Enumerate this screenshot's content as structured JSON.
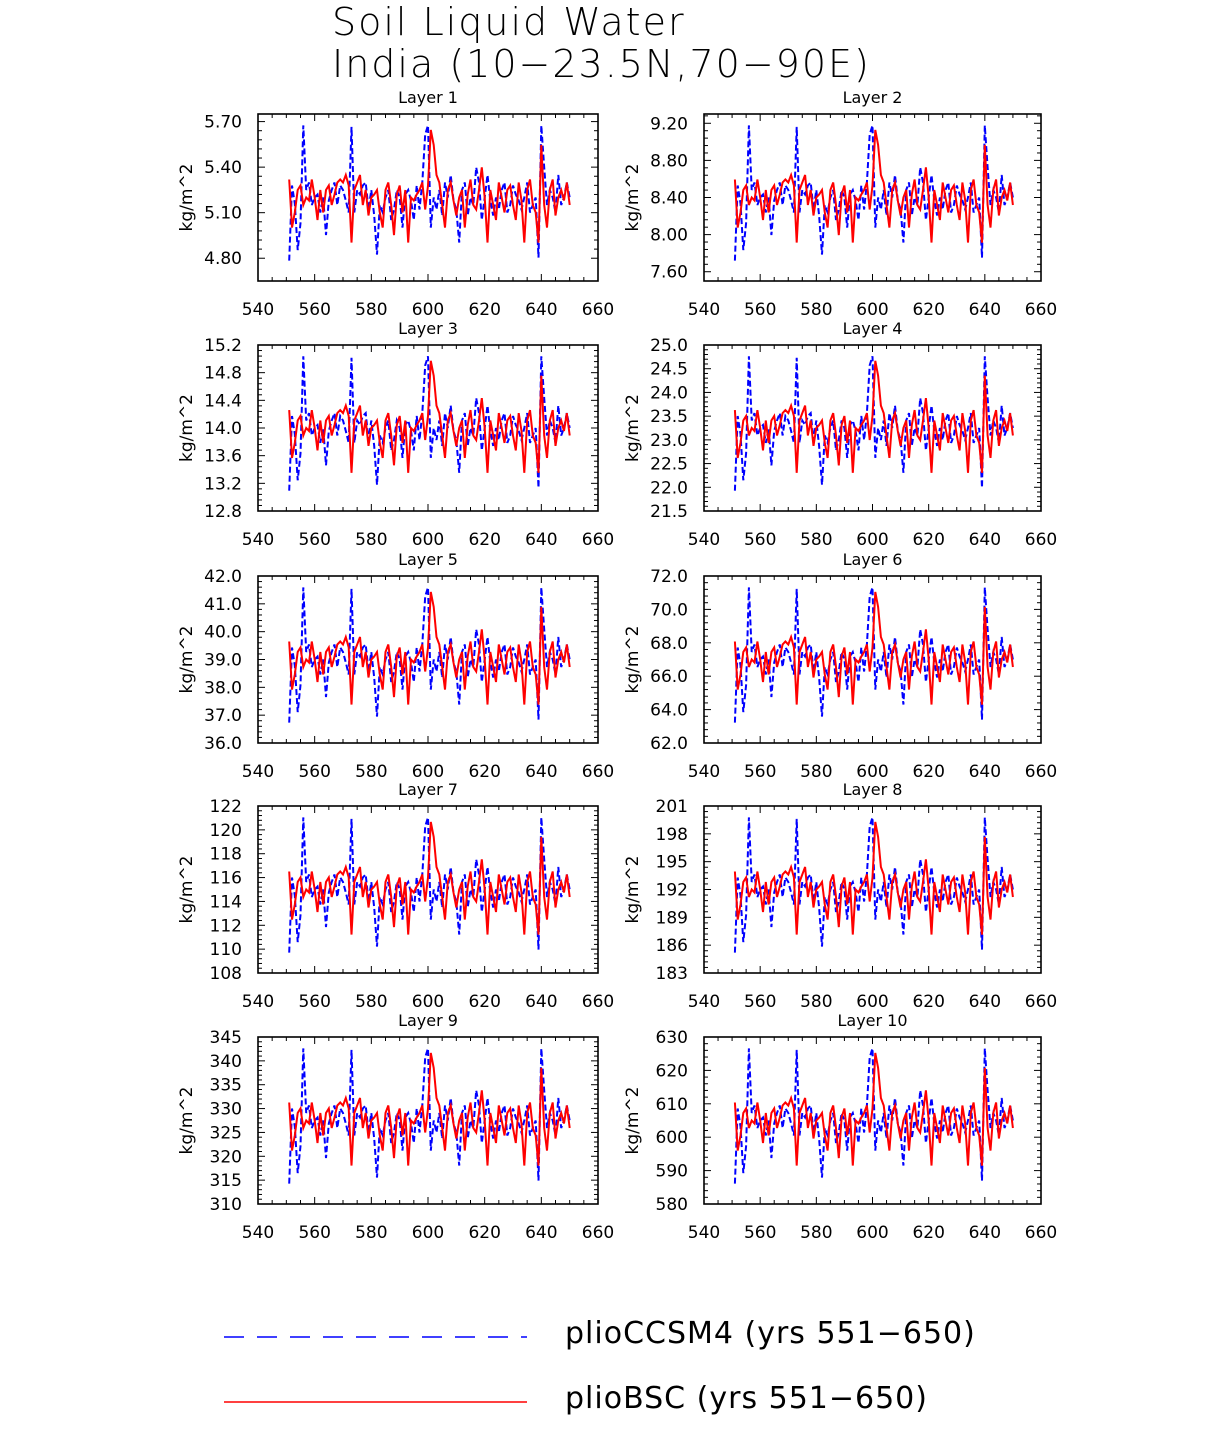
{
  "title_lines": [
    "Soil Liquid Water",
    "India (10−23.5N,70−90E)"
  ],
  "legend": [
    {
      "label": "plioCCSM4 (yrs 551−650)",
      "color": "#0000ff",
      "style": "dashed"
    },
    {
      "label": "plioBSC (yrs 551−650)",
      "color": "#ff0000",
      "style": "solid"
    }
  ],
  "chart_data": [
    {
      "type": "line",
      "title": "Layer 1",
      "ylabel": "kg/m^2",
      "xlim": [
        540,
        660
      ],
      "xticks": [
        540,
        560,
        580,
        600,
        620,
        640,
        660
      ],
      "ylim": [
        4.65,
        5.75
      ],
      "yticks": [
        4.8,
        5.1,
        5.4,
        5.7
      ],
      "ytick_labels": [
        "4.80",
        "5.10",
        "5.40",
        "5.70"
      ],
      "x_start": 551,
      "x_end": 650,
      "series": [
        {
          "name": "plioCCSM4 (yrs 551−650)",
          "color": "#0000ff",
          "dash": true
        },
        {
          "name": "plioBSC (yrs 551−650)",
          "color": "#ff0000",
          "dash": false
        }
      ]
    },
    {
      "type": "line",
      "title": "Layer 2",
      "ylabel": "kg/m^2",
      "xlim": [
        540,
        660
      ],
      "xticks": [
        540,
        560,
        580,
        600,
        620,
        640,
        660
      ],
      "ylim": [
        7.5,
        9.3
      ],
      "yticks": [
        7.6,
        8.0,
        8.4,
        8.8,
        9.2
      ],
      "ytick_labels": [
        "7.60",
        "8.00",
        "8.40",
        "8.80",
        "9.20"
      ],
      "x_start": 551,
      "x_end": 650,
      "series": [
        {
          "name": "plioCCSM4 (yrs 551−650)",
          "color": "#0000ff",
          "dash": true
        },
        {
          "name": "plioBSC (yrs 551−650)",
          "color": "#ff0000",
          "dash": false
        }
      ]
    },
    {
      "type": "line",
      "title": "Layer 3",
      "ylabel": "kg/m^2",
      "xlim": [
        540,
        660
      ],
      "xticks": [
        540,
        560,
        580,
        600,
        620,
        640,
        660
      ],
      "ylim": [
        12.8,
        15.2
      ],
      "yticks": [
        12.8,
        13.2,
        13.6,
        14.0,
        14.4,
        14.8,
        15.2
      ],
      "ytick_labels": [
        "12.8",
        "13.2",
        "13.6",
        "14.0",
        "14.4",
        "14.8",
        "15.2"
      ],
      "x_start": 551,
      "x_end": 650,
      "series": [
        {
          "name": "plioCCSM4 (yrs 551−650)",
          "color": "#0000ff",
          "dash": true
        },
        {
          "name": "plioBSC (yrs 551−650)",
          "color": "#ff0000",
          "dash": false
        }
      ]
    },
    {
      "type": "line",
      "title": "Layer 4",
      "ylabel": "kg/m^2",
      "xlim": [
        540,
        660
      ],
      "xticks": [
        540,
        560,
        580,
        600,
        620,
        640,
        660
      ],
      "ylim": [
        21.5,
        25.0
      ],
      "yticks": [
        21.5,
        22.0,
        22.5,
        23.0,
        23.5,
        24.0,
        24.5,
        25.0
      ],
      "ytick_labels": [
        "21.5",
        "22.0",
        "22.5",
        "23.0",
        "23.5",
        "24.0",
        "24.5",
        "25.0"
      ],
      "x_start": 551,
      "x_end": 650,
      "series": [
        {
          "name": "plioCCSM4 (yrs 551−650)",
          "color": "#0000ff",
          "dash": true
        },
        {
          "name": "plioBSC (yrs 551−650)",
          "color": "#ff0000",
          "dash": false
        }
      ]
    },
    {
      "type": "line",
      "title": "Layer 5",
      "ylabel": "kg/m^2",
      "xlim": [
        540,
        660
      ],
      "xticks": [
        540,
        560,
        580,
        600,
        620,
        640,
        660
      ],
      "ylim": [
        36.0,
        42.0
      ],
      "yticks": [
        36.0,
        37.0,
        38.0,
        39.0,
        40.0,
        41.0,
        42.0
      ],
      "ytick_labels": [
        "36.0",
        "37.0",
        "38.0",
        "39.0",
        "40.0",
        "41.0",
        "42.0"
      ],
      "x_start": 551,
      "x_end": 650,
      "series": [
        {
          "name": "plioCCSM4 (yrs 551−650)",
          "color": "#0000ff",
          "dash": true
        },
        {
          "name": "plioBSC (yrs 551−650)",
          "color": "#ff0000",
          "dash": false
        }
      ]
    },
    {
      "type": "line",
      "title": "Layer 6",
      "ylabel": "kg/m^2",
      "xlim": [
        540,
        660
      ],
      "xticks": [
        540,
        560,
        580,
        600,
        620,
        640,
        660
      ],
      "ylim": [
        62.0,
        72.0
      ],
      "yticks": [
        62.0,
        64.0,
        66.0,
        68.0,
        70.0,
        72.0
      ],
      "ytick_labels": [
        "62.0",
        "64.0",
        "66.0",
        "68.0",
        "70.0",
        "72.0"
      ],
      "x_start": 551,
      "x_end": 650,
      "series": [
        {
          "name": "plioCCSM4 (yrs 551−650)",
          "color": "#0000ff",
          "dash": true
        },
        {
          "name": "plioBSC (yrs 551−650)",
          "color": "#ff0000",
          "dash": false
        }
      ]
    },
    {
      "type": "line",
      "title": "Layer 7",
      "ylabel": "kg/m^2",
      "xlim": [
        540,
        660
      ],
      "xticks": [
        540,
        560,
        580,
        600,
        620,
        640,
        660
      ],
      "ylim": [
        108,
        122
      ],
      "yticks": [
        108,
        110,
        112,
        114,
        116,
        118,
        120,
        122
      ],
      "ytick_labels": [
        "108",
        "110",
        "112",
        "114",
        "116",
        "118",
        "120",
        "122"
      ],
      "x_start": 551,
      "x_end": 650,
      "series": [
        {
          "name": "plioCCSM4 (yrs 551−650)",
          "color": "#0000ff",
          "dash": true
        },
        {
          "name": "plioBSC (yrs 551−650)",
          "color": "#ff0000",
          "dash": false
        }
      ]
    },
    {
      "type": "line",
      "title": "Layer 8",
      "ylabel": "kg/m^2",
      "xlim": [
        540,
        660
      ],
      "xticks": [
        540,
        560,
        580,
        600,
        620,
        640,
        660
      ],
      "ylim": [
        183,
        201
      ],
      "yticks": [
        183,
        186,
        189,
        192,
        195,
        198,
        201
      ],
      "ytick_labels": [
        "183",
        "186",
        "189",
        "192",
        "195",
        "198",
        "201"
      ],
      "x_start": 551,
      "x_end": 650,
      "series": [
        {
          "name": "plioCCSM4 (yrs 551−650)",
          "color": "#0000ff",
          "dash": true
        },
        {
          "name": "plioBSC (yrs 551−650)",
          "color": "#ff0000",
          "dash": false
        }
      ]
    },
    {
      "type": "line",
      "title": "Layer 9",
      "ylabel": "kg/m^2",
      "xlim": [
        540,
        660
      ],
      "xticks": [
        540,
        560,
        580,
        600,
        620,
        640,
        660
      ],
      "ylim": [
        310,
        345
      ],
      "yticks": [
        310,
        315,
        320,
        325,
        330,
        335,
        340,
        345
      ],
      "ytick_labels": [
        "310",
        "315",
        "320",
        "325",
        "330",
        "335",
        "340",
        "345"
      ],
      "x_start": 551,
      "x_end": 650,
      "series": [
        {
          "name": "plioCCSM4 (yrs 551−650)",
          "color": "#0000ff",
          "dash": true
        },
        {
          "name": "plioBSC (yrs 551−650)",
          "color": "#ff0000",
          "dash": false
        }
      ]
    },
    {
      "type": "line",
      "title": "Layer 10",
      "ylabel": "kg/m^2",
      "xlim": [
        540,
        660
      ],
      "xticks": [
        540,
        560,
        580,
        600,
        620,
        640,
        660
      ],
      "ylim": [
        580,
        630
      ],
      "yticks": [
        580,
        590,
        600,
        610,
        620,
        630
      ],
      "ytick_labels": [
        "580",
        "590",
        "600",
        "610",
        "620",
        "630"
      ],
      "x_start": 551,
      "x_end": 650,
      "series": [
        {
          "name": "plioCCSM4 (yrs 551−650)",
          "color": "#0000ff",
          "dash": true
        },
        {
          "name": "plioBSC (yrs 551−650)",
          "color": "#ff0000",
          "dash": false
        }
      ]
    }
  ],
  "series_norm": {
    "plioCCSM4": [
      0.08,
      0.58,
      0.46,
      0.15,
      0.33,
      0.98,
      0.55,
      0.6,
      0.45,
      0.5,
      0.52,
      0.4,
      0.5,
      0.25,
      0.48,
      0.55,
      0.6,
      0.45,
      0.58,
      0.55,
      0.48,
      0.4,
      0.97,
      0.4,
      0.55,
      0.52,
      0.58,
      0.6,
      0.42,
      0.55,
      0.38,
      0.12,
      0.45,
      0.4,
      0.5,
      0.55,
      0.35,
      0.42,
      0.55,
      0.5,
      0.3,
      0.52,
      0.55,
      0.48,
      0.35,
      0.58,
      0.42,
      0.6,
      0.92,
      0.98,
      0.3,
      0.5,
      0.42,
      0.55,
      0.38,
      0.6,
      0.5,
      0.65,
      0.48,
      0.42,
      0.2,
      0.55,
      0.6,
      0.38,
      0.5,
      0.45,
      0.7,
      0.6,
      0.35,
      0.5,
      0.65,
      0.48,
      0.38,
      0.5,
      0.42,
      0.55,
      0.6,
      0.4,
      0.45,
      0.58,
      0.52,
      0.48,
      0.42,
      0.5,
      0.6,
      0.4,
      0.45,
      0.5,
      0.1,
      0.98,
      0.7,
      0.45,
      0.55,
      0.5,
      0.4,
      0.65,
      0.45,
      0.5,
      0.6,
      0.5
    ],
    "plioBSC": [
      0.62,
      0.3,
      0.4,
      0.55,
      0.58,
      0.45,
      0.5,
      0.48,
      0.62,
      0.5,
      0.35,
      0.55,
      0.4,
      0.55,
      0.58,
      0.45,
      0.52,
      0.6,
      0.62,
      0.6,
      0.65,
      0.58,
      0.2,
      0.55,
      0.6,
      0.65,
      0.45,
      0.55,
      0.38,
      0.5,
      0.52,
      0.55,
      0.4,
      0.3,
      0.55,
      0.6,
      0.45,
      0.25,
      0.52,
      0.58,
      0.4,
      0.55,
      0.2,
      0.5,
      0.48,
      0.52,
      0.55,
      0.6,
      0.42,
      0.58,
      0.95,
      0.85,
      0.65,
      0.6,
      0.45,
      0.3,
      0.55,
      0.6,
      0.48,
      0.38,
      0.5,
      0.55,
      0.3,
      0.52,
      0.62,
      0.45,
      0.42,
      0.55,
      0.7,
      0.5,
      0.2,
      0.55,
      0.45,
      0.35,
      0.6,
      0.5,
      0.4,
      0.55,
      0.58,
      0.45,
      0.35,
      0.6,
      0.48,
      0.2,
      0.55,
      0.62,
      0.45,
      0.4,
      0.2,
      0.85,
      0.45,
      0.3,
      0.55,
      0.62,
      0.38,
      0.5,
      0.55,
      0.48,
      0.6,
      0.45
    ]
  }
}
